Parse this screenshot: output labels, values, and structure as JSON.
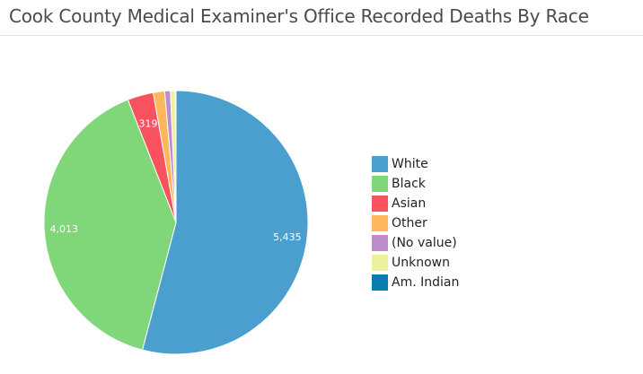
{
  "chart_data": {
    "type": "pie",
    "title": "Cook County Medical Examiner's Office Recorded Deaths By Race",
    "legend_position": "right",
    "slices": [
      {
        "name": "White",
        "value": 5435,
        "label": "5,435",
        "color": "#4a9fcf"
      },
      {
        "name": "Black",
        "value": 4013,
        "label": "4,013",
        "color": "#7fd77a"
      },
      {
        "name": "Asian",
        "value": 319,
        "label": "319",
        "color": "#f8525f"
      },
      {
        "name": "Other",
        "value": 140,
        "label": "",
        "color": "#fdb65a"
      },
      {
        "name": "(No value)",
        "value": 70,
        "label": "",
        "color": "#bd8dcb"
      },
      {
        "name": "Unknown",
        "value": 60,
        "label": "",
        "color": "#eef09c"
      },
      {
        "name": "Am. Indian",
        "value": 8,
        "label": "",
        "color": "#0a7cb0"
      }
    ]
  }
}
